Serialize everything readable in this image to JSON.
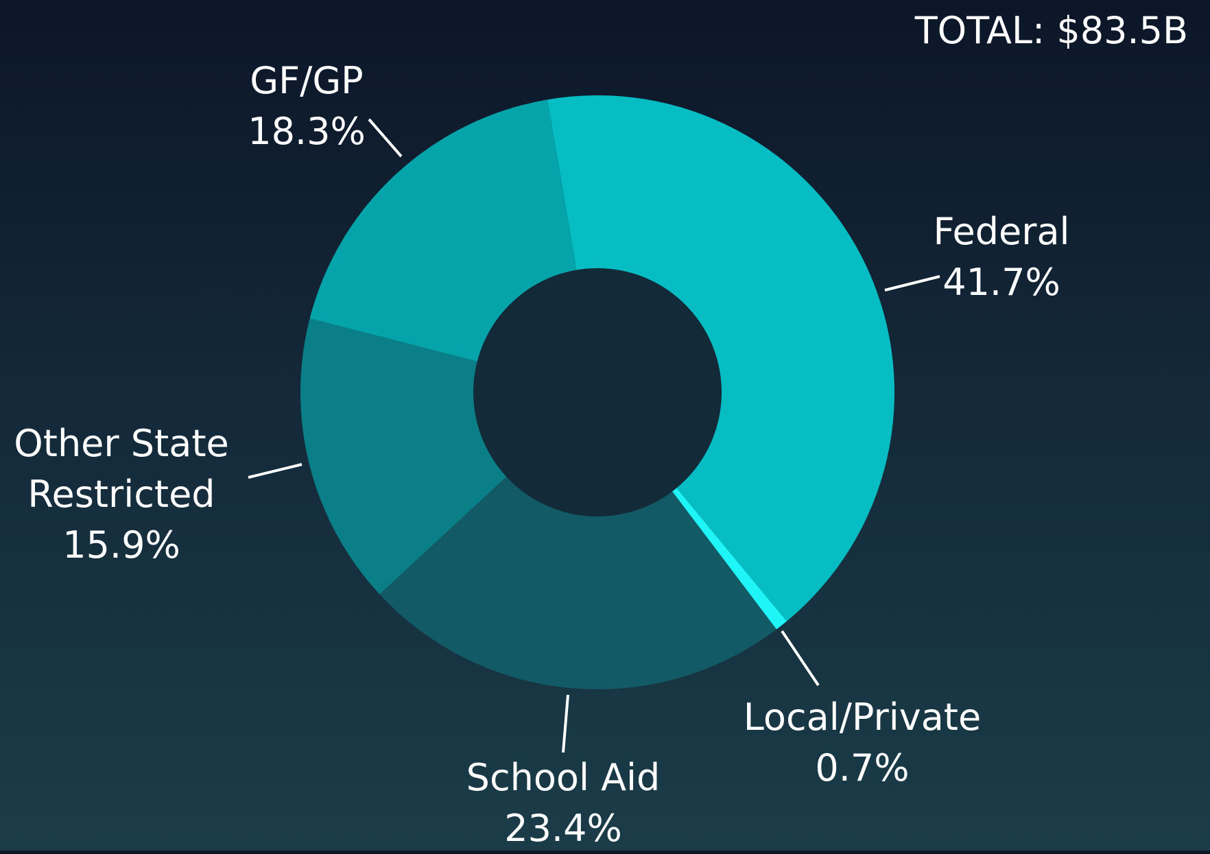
{
  "chart_data": {
    "type": "donut",
    "annotation": "TOTAL: $83.5B",
    "categories": [
      "Federal",
      "Local/Private",
      "School Aid",
      "Other State Restricted",
      "GF/GP"
    ],
    "values": [
      41.7,
      0.7,
      23.4,
      15.9,
      18.3
    ],
    "value_labels": [
      "41.7%",
      "0.7%",
      "23.4%",
      "15.9%",
      "18.3%"
    ],
    "colors": [
      "#06bdc4",
      "#1ff5f7",
      "#125a65",
      "#0b7f87",
      "#05a4aa"
    ]
  }
}
